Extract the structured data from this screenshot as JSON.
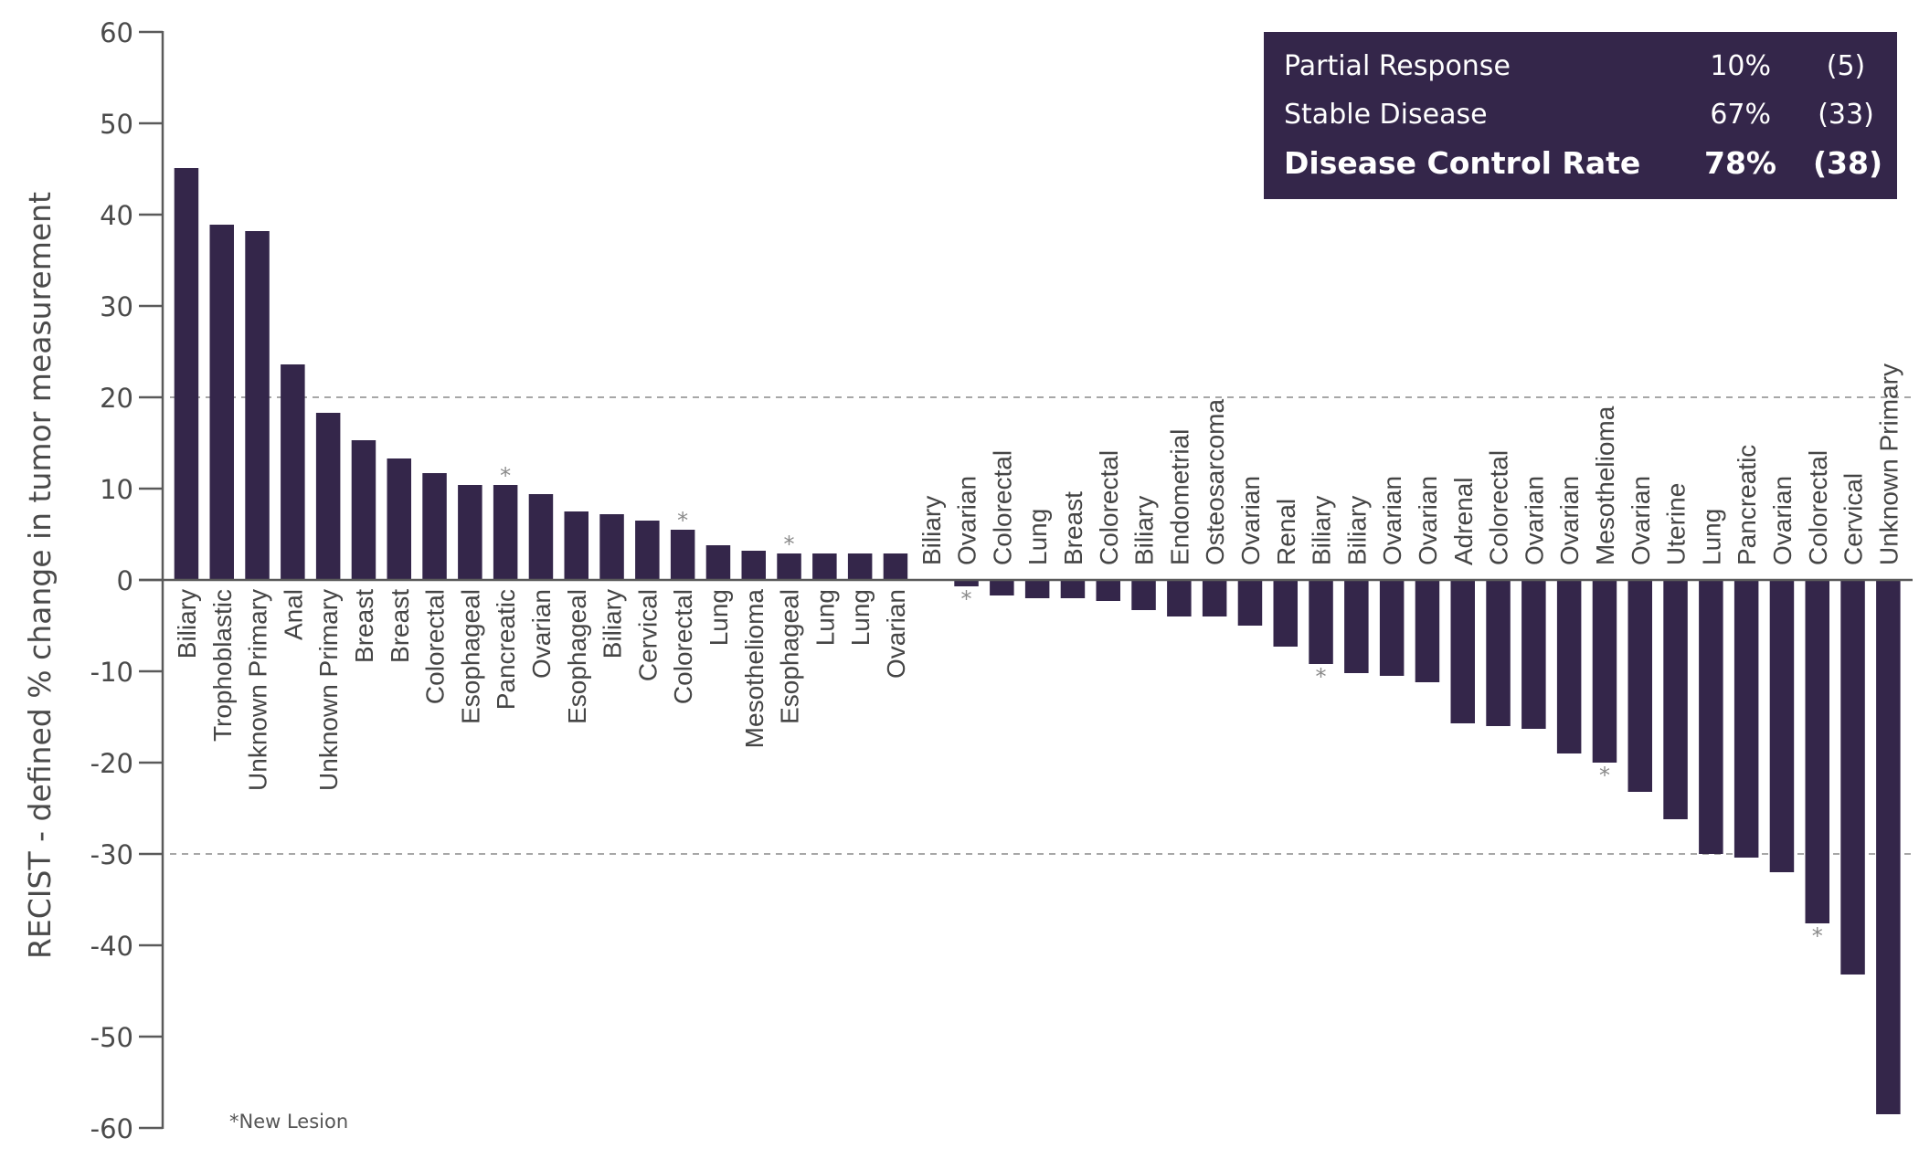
{
  "chart_data": {
    "type": "bar",
    "title": "",
    "xlabel": "",
    "ylabel": "RECIST - defined % change in tumor measurement",
    "ylim": [
      -60,
      60
    ],
    "yticks": [
      60,
      50,
      40,
      30,
      20,
      10,
      0,
      -10,
      -20,
      -30,
      -40,
      -50,
      -60
    ],
    "reference_lines": [
      20,
      -30
    ],
    "grid": false,
    "bar_color": "#34264a",
    "categories": [
      "Biliary",
      "Trophoblastic",
      "Unknown Primary",
      "Anal",
      "Unknown Primary",
      "Breast",
      "Breast",
      "Colorectal",
      "Esophageal",
      "Pancreatic",
      "Ovarian",
      "Esophageal",
      "Biliary",
      "Cervical",
      "Colorectal",
      "Lung",
      "Mesothelioma",
      "Esophageal",
      "Lung",
      "Lung",
      "Ovarian",
      "Biliary",
      "Ovarian",
      "Colorectal",
      "Lung",
      "Breast",
      "Colorectal",
      "Biliary",
      "Endometrial",
      "Osteosarcoma",
      "Ovarian",
      "Renal",
      "Biliary",
      "Biliary",
      "Ovarian",
      "Ovarian",
      "Adrenal",
      "Colorectal",
      "Ovarian",
      "Ovarian",
      "Mesothelioma",
      "Ovarian",
      "Uterine",
      "Lung",
      "Pancreatic",
      "Ovarian",
      "Colorectal",
      "Cervical",
      "Unknown Primary"
    ],
    "values": [
      45.1,
      38.9,
      38.2,
      23.6,
      18.3,
      15.3,
      13.3,
      11.7,
      10.4,
      10.4,
      9.4,
      7.5,
      7.2,
      6.5,
      5.5,
      3.8,
      3.2,
      2.9,
      2.9,
      2.9,
      2.9,
      0,
      -0.7,
      -1.7,
      -2.0,
      -2.0,
      -2.3,
      -3.3,
      -4.0,
      -4.0,
      -5.0,
      -7.3,
      -9.2,
      -10.2,
      -10.5,
      -11.2,
      -15.7,
      -16.0,
      -16.3,
      -19.0,
      -20.0,
      -23.2,
      -26.2,
      -30.0,
      -30.4,
      -32.0,
      -37.6,
      -43.2,
      -58.5
    ],
    "new_lesion": [
      false,
      false,
      false,
      false,
      false,
      false,
      false,
      false,
      false,
      true,
      false,
      false,
      false,
      false,
      true,
      false,
      false,
      true,
      false,
      false,
      false,
      false,
      true,
      false,
      false,
      false,
      false,
      false,
      false,
      false,
      false,
      false,
      true,
      false,
      false,
      false,
      false,
      false,
      false,
      false,
      true,
      false,
      false,
      false,
      false,
      false,
      true,
      false,
      false
    ],
    "asterisk_symbol": "*",
    "footnote": "*New Lesion",
    "legend": {
      "position": "top-right",
      "rows": [
        {
          "label": "Partial Response",
          "percent": "10%",
          "count": "(5)",
          "bold": false
        },
        {
          "label": "Stable Disease",
          "percent": "67%",
          "count": "(33)",
          "bold": false
        },
        {
          "label": "Disease Control Rate",
          "percent": "78%",
          "count": "(38)",
          "bold": true
        }
      ]
    }
  }
}
